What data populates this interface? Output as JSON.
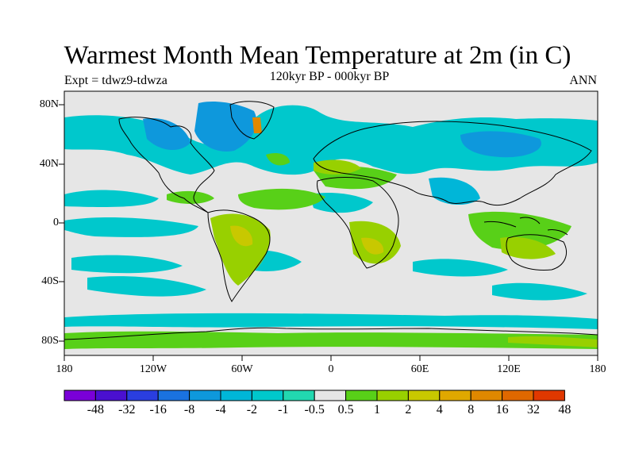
{
  "title": "Warmest Month Mean Temperature at 2m (in C)",
  "subtitle": "120kyr BP - 000kyr BP",
  "experiment": "Expt = tdwz9-tdwza",
  "season": "ANN",
  "lat_labels": [
    "80N",
    "40N",
    "0",
    "40S",
    "80S"
  ],
  "lon_labels": [
    "180",
    "120W",
    "60W",
    "0",
    "60E",
    "120E",
    "180"
  ],
  "colorbar": {
    "labels": [
      "-48",
      "-32",
      "-16",
      "-8",
      "-4",
      "-2",
      "-1",
      "-0.5",
      "0.5",
      "1",
      "2",
      "4",
      "8",
      "16",
      "32",
      "48"
    ],
    "colors": [
      "#7a00d8",
      "#4a10d0",
      "#2a3ee0",
      "#1a72e0",
      "#0e98dc",
      "#00b6d8",
      "#00c8cc",
      "#22d8b0",
      "#e6e6e6",
      "#58d018",
      "#98d000",
      "#c8c800",
      "#e0a800",
      "#e08800",
      "#e06800",
      "#e03800"
    ]
  },
  "colors": {
    "background_land_ocean": "#e6e6e6",
    "coastline": "#000000"
  }
}
